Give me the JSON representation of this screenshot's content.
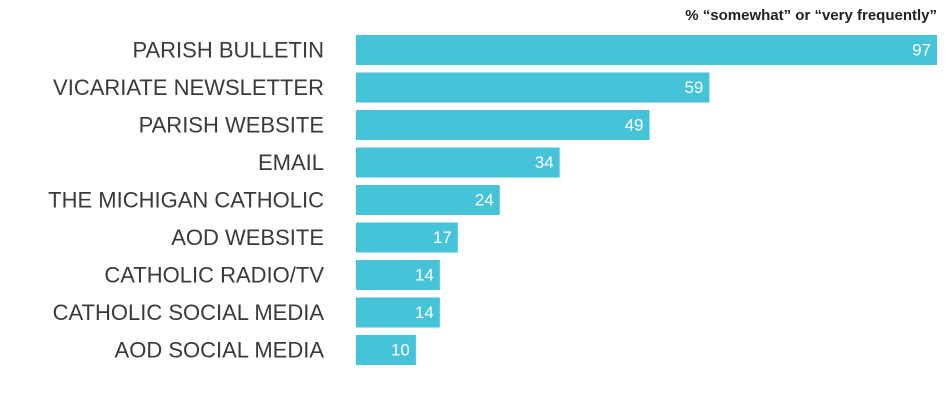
{
  "chart_data": {
    "type": "bar",
    "orientation": "horizontal",
    "title": "% “somewhat” or “very frequently”",
    "categories": [
      "PARISH BULLETIN",
      "VICARIATE NEWSLETTER",
      "PARISH WEBSITE",
      "EMAIL",
      "THE MICHIGAN CATHOLIC",
      "AOD WEBSITE",
      "CATHOLIC RADIO/TV",
      "CATHOLIC SOCIAL MEDIA",
      "AOD SOCIAL MEDIA"
    ],
    "values": [
      97,
      59,
      49,
      34,
      24,
      17,
      14,
      14,
      10
    ],
    "xlim": [
      0,
      97
    ],
    "grid": false,
    "bar_color": "#45c3d9",
    "label_color": "#3a3a3a",
    "value_label_color": "#ffffff"
  }
}
